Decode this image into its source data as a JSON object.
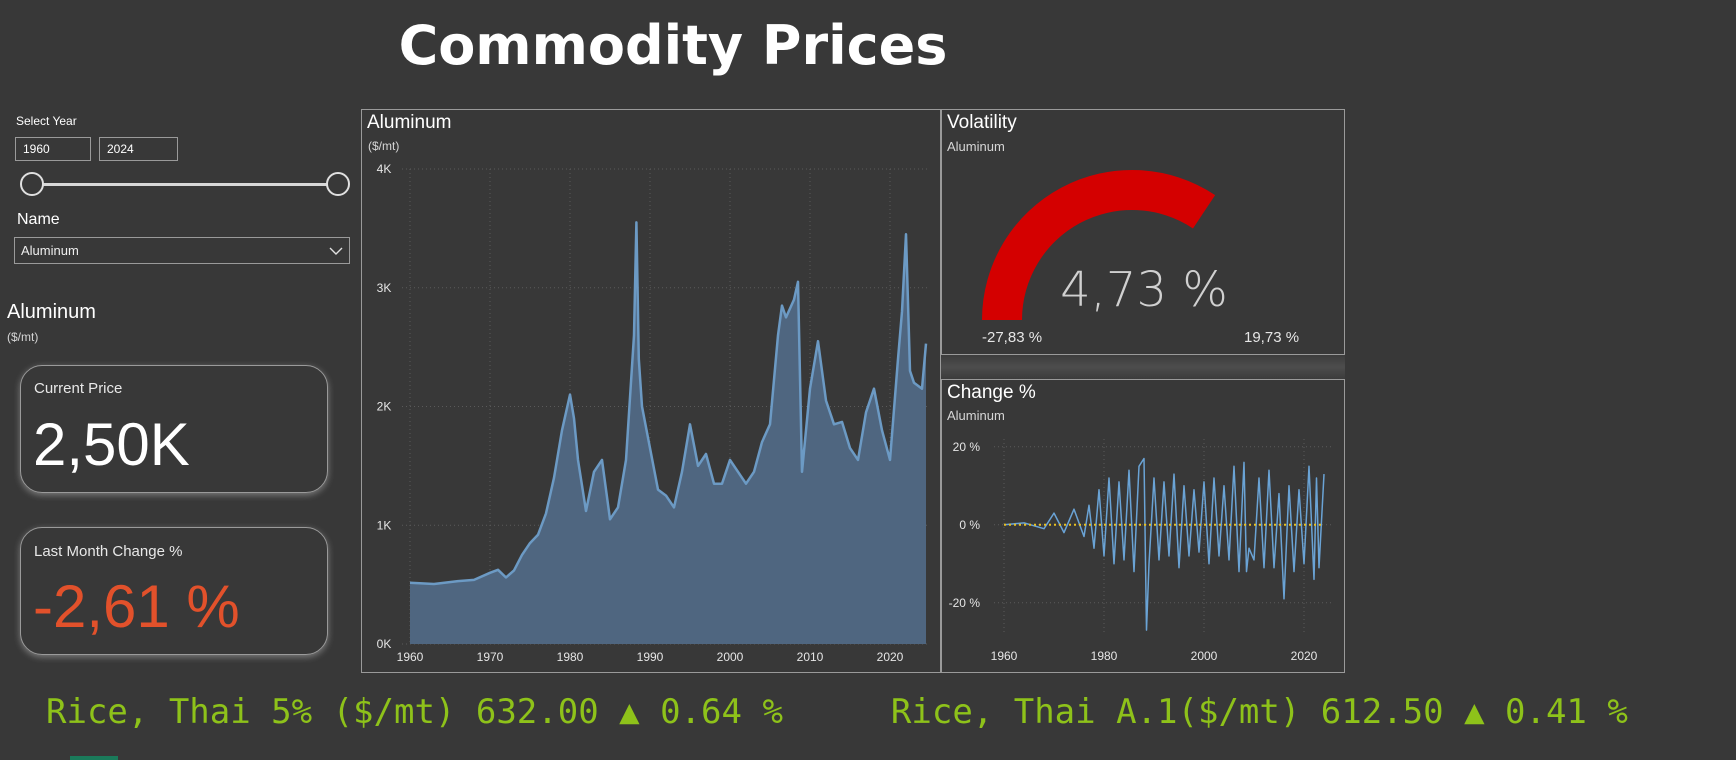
{
  "title": "Commodity Prices",
  "filters": {
    "select_year_label": "Select Year",
    "year_start": "1960",
    "year_end": "2024",
    "name_label": "Name",
    "name_value": "Aluminum"
  },
  "kpi": {
    "commodity": "Aluminum",
    "unit": "($/mt)",
    "current_price_label": "Current Price",
    "current_price": "2,50K",
    "last_month_change_label": "Last Month Change %",
    "last_month_change": "-2,61 %",
    "change_color": "#e2512b"
  },
  "main_chart": {
    "title": "Aluminum",
    "subtitle": "($/mt)",
    "fill_color": "#4f6680",
    "line_color": "#6c9ac4"
  },
  "volatility": {
    "title": "Volatility",
    "subtitle": "Aluminum",
    "value": "4,73 %",
    "min": "-27,83 %",
    "max": "19,73 %",
    "gauge_fraction": 0.687,
    "gauge_color": "#d40000"
  },
  "change_chart": {
    "title": "Change %",
    "subtitle": "Aluminum",
    "line_color": "#6aa3d5",
    "zero_line_color": "#e8c020"
  },
  "ticker": {
    "item1": "Rice, Thai 5% ($/mt) 632.00 ▲ 0.64 %",
    "item2": "Rice, Thai A.1($/mt) 612.50 ▲ 0.41 %",
    "color": "#8ec21a"
  },
  "chart_data": [
    {
      "type": "area",
      "title": "Aluminum",
      "ylabel": "($/mt)",
      "x_ticks": [
        "1960",
        "1970",
        "1980",
        "1990",
        "2000",
        "2010",
        "2020"
      ],
      "y_ticks": [
        "0K",
        "1K",
        "2K",
        "3K",
        "4K"
      ],
      "ylim": [
        0,
        4000
      ],
      "xlim": [
        1959,
        2025
      ],
      "grid": true,
      "x": [
        1960,
        1963,
        1966,
        1968,
        1970,
        1971,
        1972,
        1973,
        1974,
        1975,
        1976,
        1977,
        1978,
        1979,
        1980,
        1980.5,
        1981,
        1982,
        1983,
        1984,
        1985,
        1986,
        1987,
        1988,
        1988.3,
        1988.6,
        1989,
        1990,
        1991,
        1992,
        1993,
        1994,
        1995,
        1996,
        1997,
        1998,
        1999,
        2000,
        2001,
        2002,
        2003,
        2004,
        2005,
        2006,
        2006.5,
        2007,
        2008,
        2008.5,
        2009,
        2010,
        2011,
        2012,
        2013,
        2014,
        2015,
        2016,
        2017,
        2018,
        2019,
        2020,
        2021,
        2021.5,
        2022,
        2022.5,
        2023,
        2024,
        2024.5
      ],
      "y": [
        515,
        505,
        530,
        540,
        600,
        625,
        560,
        620,
        750,
        850,
        920,
        1100,
        1400,
        1800,
        2100,
        1900,
        1550,
        1120,
        1450,
        1550,
        1050,
        1150,
        1550,
        2600,
        3550,
        2400,
        2000,
        1650,
        1300,
        1250,
        1150,
        1450,
        1850,
        1500,
        1600,
        1350,
        1350,
        1550,
        1450,
        1350,
        1450,
        1700,
        1850,
        2600,
        2850,
        2750,
        2900,
        3050,
        1450,
        2150,
        2550,
        2050,
        1850,
        1870,
        1650,
        1550,
        1950,
        2150,
        1800,
        1550,
        2400,
        2800,
        3450,
        2300,
        2200,
        2150,
        2530
      ],
      "series": [
        {
          "name": "Aluminum"
        }
      ]
    },
    {
      "type": "line",
      "title": "Change %",
      "x_ticks": [
        "1960",
        "1980",
        "2000",
        "2020"
      ],
      "y_ticks": [
        "20 %",
        "0 %",
        "-20 %"
      ],
      "ylim": [
        -28,
        22
      ],
      "xlim": [
        1958,
        2026
      ],
      "grid": true,
      "x": [
        1960,
        1964,
        1968,
        1970,
        1972,
        1974,
        1976,
        1977,
        1978,
        1979,
        1980,
        1981,
        1982,
        1983,
        1984,
        1985,
        1986,
        1987,
        1988,
        1988.5,
        1989,
        1990,
        1991,
        1992,
        1993,
        1994,
        1995,
        1996,
        1997,
        1998,
        1999,
        2000,
        2001,
        2002,
        2003,
        2004,
        2005,
        2006,
        2007,
        2008,
        2008.5,
        2009,
        2010,
        2011,
        2012,
        2013,
        2014,
        2015,
        2016,
        2017,
        2018,
        2019,
        2020,
        2021,
        2022,
        2022.5,
        2023,
        2024
      ],
      "y": [
        0,
        0.5,
        -1,
        3,
        -2,
        4,
        -3,
        5,
        -6,
        9,
        -8,
        12,
        -10,
        11,
        -9,
        14,
        -12,
        15,
        17,
        -27,
        -10,
        12,
        -9,
        11,
        -8,
        13,
        -11,
        10,
        -8,
        9,
        -7,
        11,
        -10,
        12,
        -8,
        10,
        -9,
        15,
        -12,
        16,
        -12,
        -6,
        -9,
        12,
        -11,
        14,
        -11,
        8,
        -19,
        10,
        -12,
        9,
        -10,
        15,
        -14,
        12,
        -11,
        13
      ],
      "series": [
        {
          "name": "Aluminum"
        }
      ]
    }
  ]
}
